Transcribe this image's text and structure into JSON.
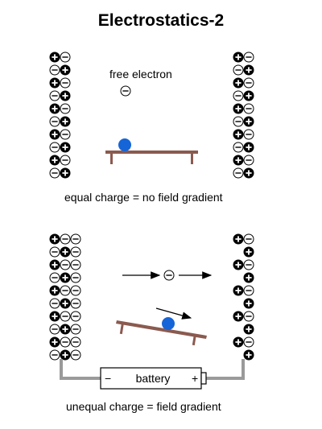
{
  "title": "Electrostatics-2",
  "top_panel": {
    "free_electron_label": "free electron",
    "caption": "equal charge = no field gradient",
    "left_column": [
      "+-",
      "-+",
      "+-",
      "-+",
      "+-",
      "-+",
      "+-",
      "-+",
      "+-",
      "-+"
    ],
    "right_column": [
      "+-",
      "-+",
      "+-",
      "-+",
      "+-",
      "-+",
      "+-",
      "-+",
      "+-",
      "-+"
    ]
  },
  "bottom_panel": {
    "caption": "unequal charge = field gradient",
    "battery_label": "battery",
    "battery_minus": "−",
    "battery_plus": "+",
    "left_column": [
      "+--",
      "-+-",
      "+--",
      "-+-",
      "+--",
      "-+-",
      "+--",
      "-+-",
      "+--",
      "-+-"
    ],
    "right_column": [
      "+-",
      "+",
      "+-",
      "+",
      "+-",
      "+",
      "+-",
      "+",
      "+-",
      "+"
    ]
  },
  "colors": {
    "positive": "#000000",
    "negative": "#ffffff",
    "electron": "#1565d8",
    "plank": "#8b5a4f",
    "wire": "#9a9a9a"
  }
}
